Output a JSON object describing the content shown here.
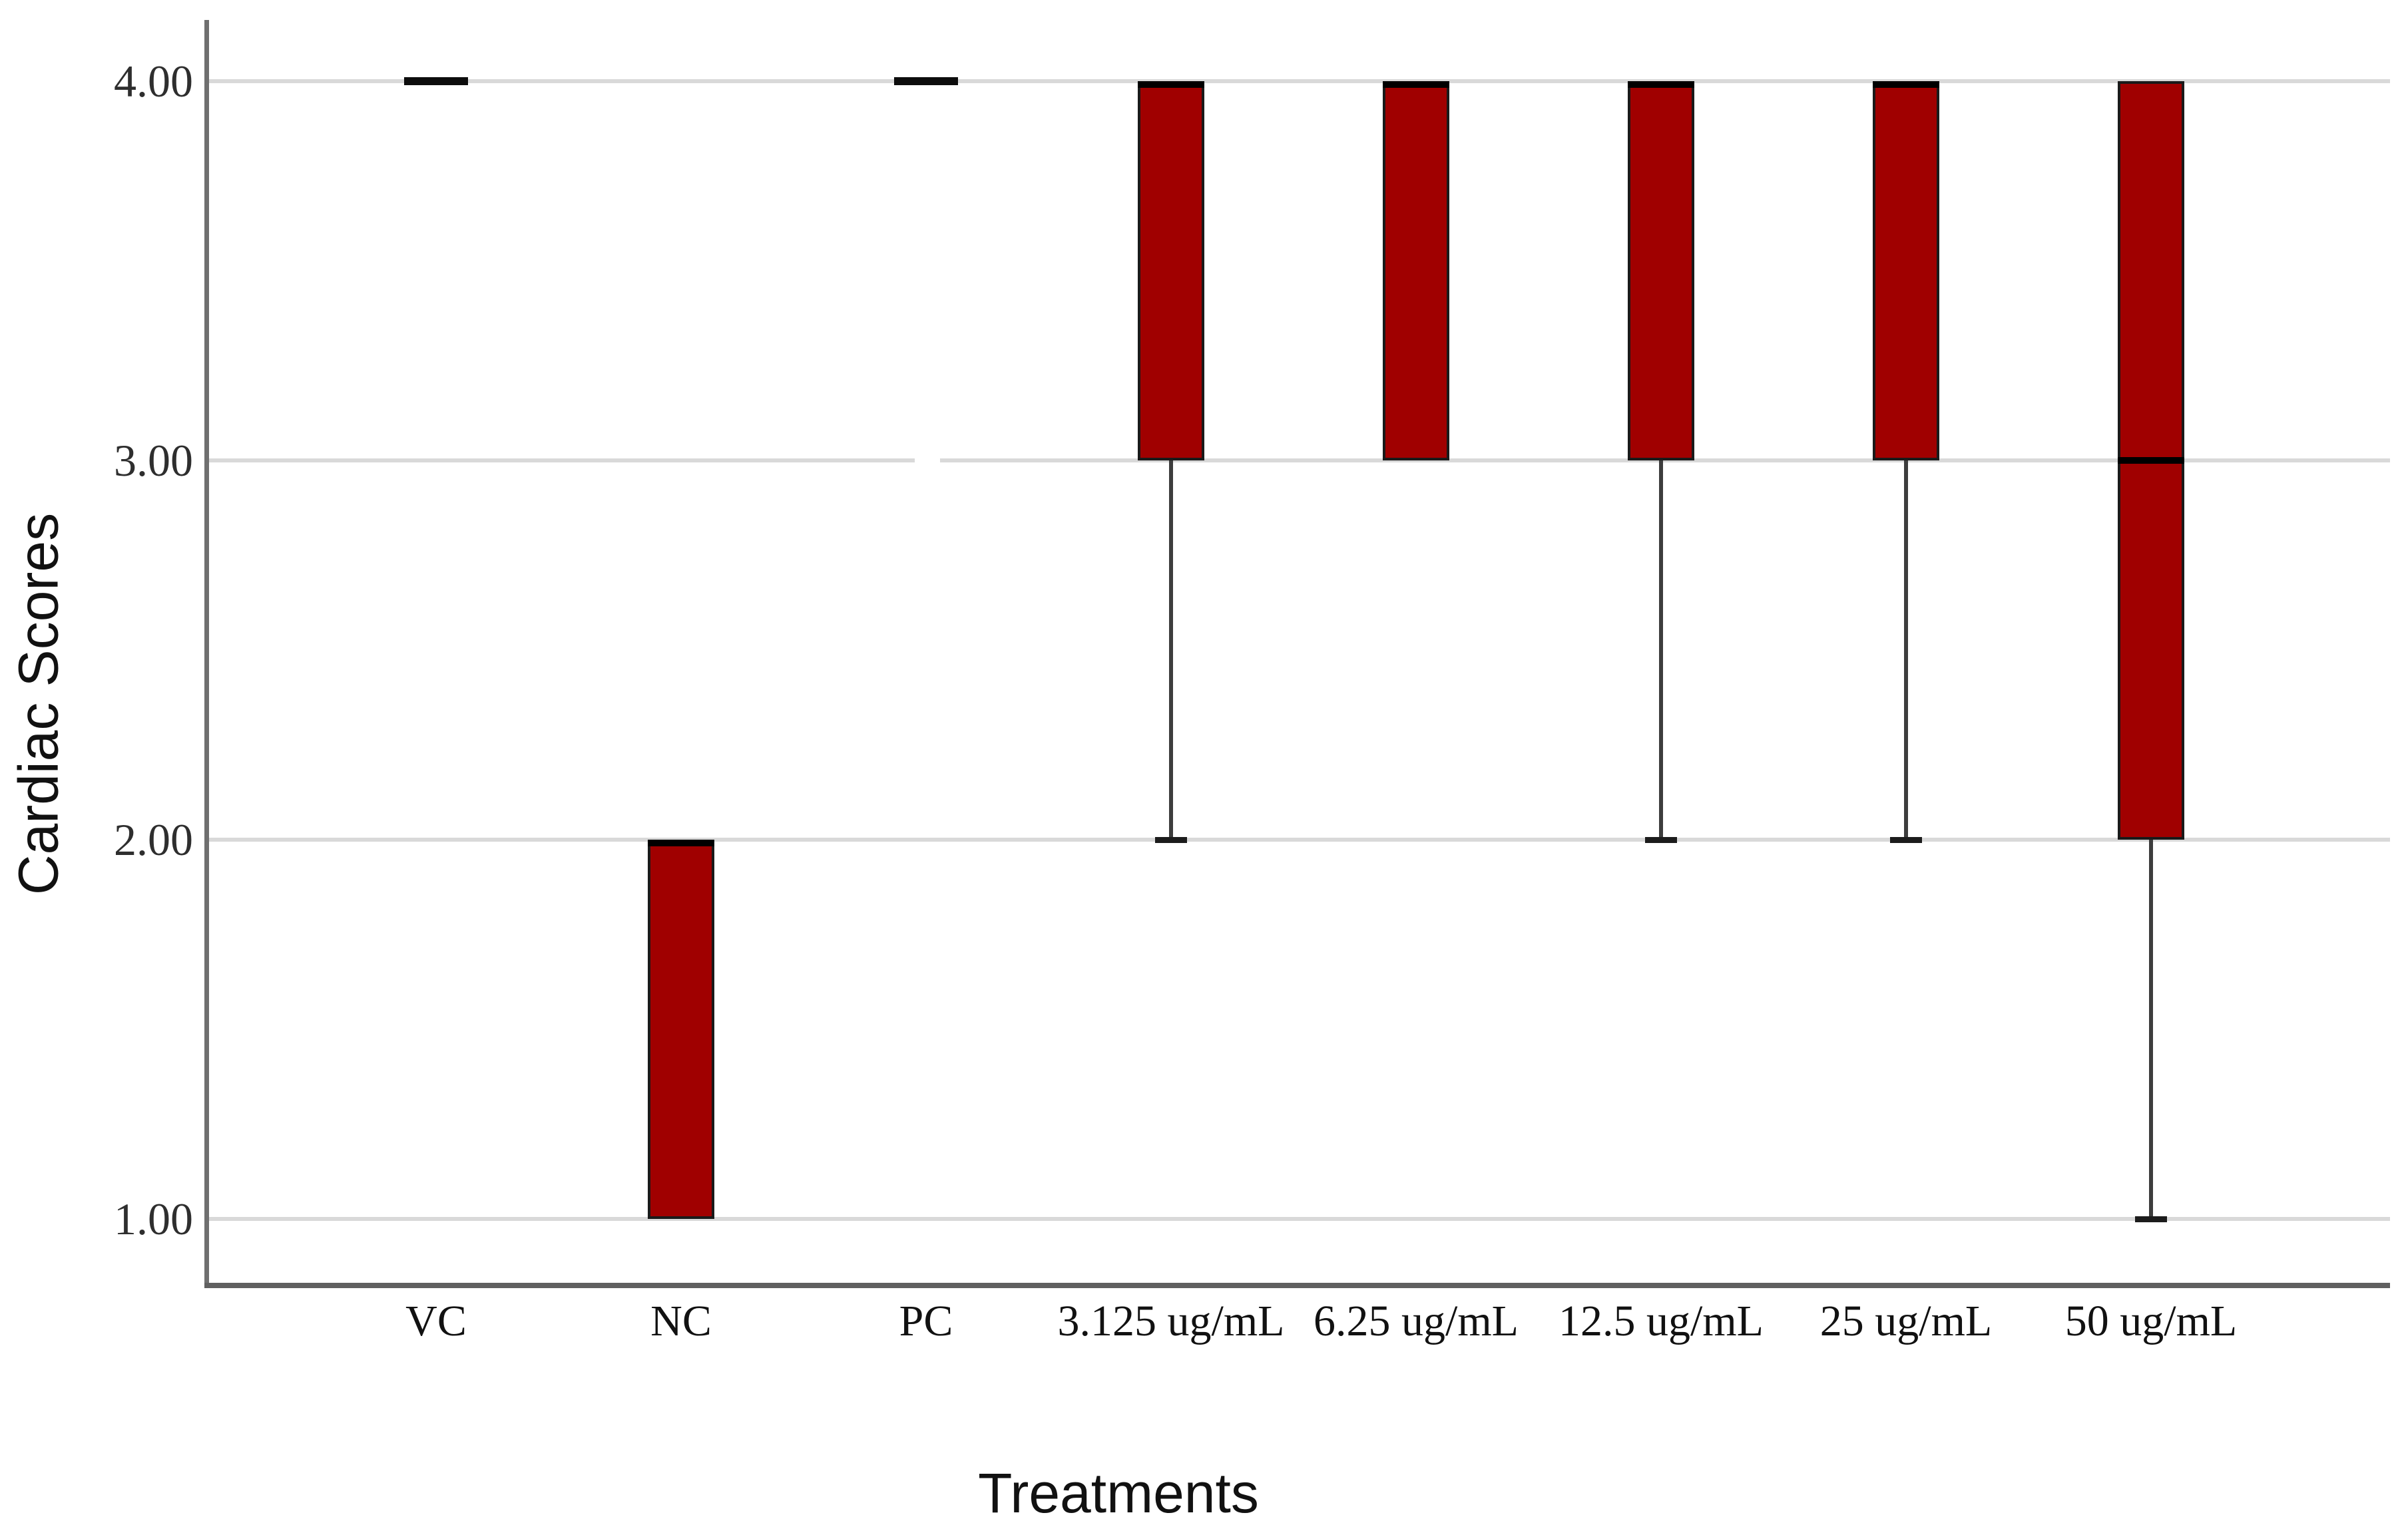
{
  "figure": {
    "y_axis_title": "Cardiac Scores",
    "x_axis_title": "Treatments"
  },
  "colors": {
    "box_fill": "#A00000",
    "box_border": "#1a1a1a",
    "median_line": "#000000",
    "whisker_line": "#3d3d3d",
    "whisker_cap": "#1c1c1c",
    "gridline": "#d9d9d9",
    "axis_spine": "#6f6f6f",
    "text": "#111111",
    "background": "#ffffff"
  },
  "y_axis": {
    "ticks": [
      {
        "label": "4.00",
        "value": 4
      },
      {
        "label": "3.00",
        "value": 3
      },
      {
        "label": "2.00",
        "value": 2
      },
      {
        "label": "1.00",
        "value": 1
      }
    ],
    "min": 1,
    "max": 4
  },
  "chart_data": {
    "type": "box",
    "title": "",
    "xlabel": "Treatments",
    "ylabel": "Cardiac Scores",
    "grid": true,
    "legend": false,
    "ylim": [
      1,
      4
    ],
    "categories": [
      "VC",
      "NC",
      "PC",
      "3.125 ug/mL",
      "6.25 ug/mL",
      "12.5 ug/mL",
      "25 ug/mL",
      "50 ug/mL"
    ],
    "boxes": [
      {
        "category": "VC",
        "q1": 4,
        "q3": 4,
        "median": 4,
        "whisker_low": 4,
        "whisker_high": 4,
        "collapsed": true
      },
      {
        "category": "NC",
        "q1": 1,
        "q3": 2,
        "median": 2,
        "whisker_low": 1,
        "whisker_high": 2,
        "collapsed": false
      },
      {
        "category": "PC",
        "q1": 4,
        "q3": 4,
        "median": 4,
        "whisker_low": 4,
        "whisker_high": 4,
        "collapsed": true
      },
      {
        "category": "3.125 ug/mL",
        "q1": 3,
        "q3": 4,
        "median": 4,
        "whisker_low": 2,
        "whisker_high": 4,
        "collapsed": false
      },
      {
        "category": "6.25 ug/mL",
        "q1": 3,
        "q3": 4,
        "median": 4,
        "whisker_low": 3,
        "whisker_high": 4,
        "collapsed": false
      },
      {
        "category": "12.5 ug/mL",
        "q1": 3,
        "q3": 4,
        "median": 4,
        "whisker_low": 2,
        "whisker_high": 4,
        "collapsed": false
      },
      {
        "category": "25 ug/mL",
        "q1": 3,
        "q3": 4,
        "median": 4,
        "whisker_low": 2,
        "whisker_high": 4,
        "collapsed": false
      },
      {
        "category": "50 ug/mL",
        "q1": 2,
        "q3": 4,
        "median": 3,
        "whisker_low": 1,
        "whisker_high": 4,
        "collapsed": false
      }
    ]
  }
}
